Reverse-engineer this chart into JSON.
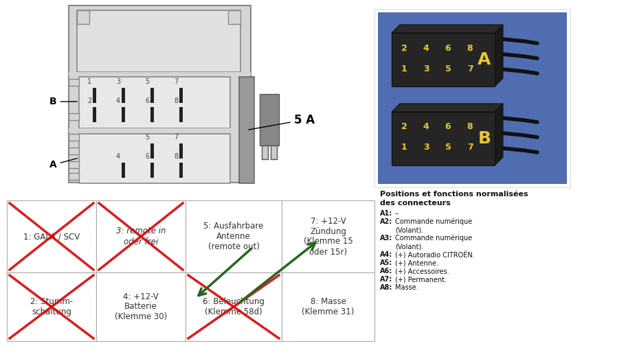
{
  "bg_color": "#ffffff",
  "table_cells": [
    {
      "row": 0,
      "col": 0,
      "text": "1: GALA / SCV",
      "crossed": true,
      "italic": false
    },
    {
      "row": 0,
      "col": 1,
      "text": "3: remote in\noder frei",
      "crossed": true,
      "italic": true
    },
    {
      "row": 0,
      "col": 2,
      "text": "5: Ausfahrbare\nAntenne\n(remote out)",
      "crossed": false,
      "italic": false
    },
    {
      "row": 0,
      "col": 3,
      "text": "7: +12-V\nZündung\n(Klemme 15\noder 15r)",
      "crossed": false,
      "italic": false
    },
    {
      "row": 1,
      "col": 0,
      "text": "2: Stumm-\nschaltung",
      "crossed": true,
      "italic": false
    },
    {
      "row": 1,
      "col": 1,
      "text": "4: +12-V\nBatterie\n(Klemme 30)",
      "crossed": false,
      "italic": false
    },
    {
      "row": 1,
      "col": 2,
      "text": "6: Beleuchtung\n(Klemme 58d)",
      "crossed": true,
      "italic": false
    },
    {
      "row": 1,
      "col": 3,
      "text": "8: Masse\n(Klemme 31)",
      "crossed": false,
      "italic": false
    }
  ],
  "photo_bg": "#5577bb",
  "connector_A_top_row": [
    "2",
    "4",
    "6",
    "8"
  ],
  "connector_A_bot_row": [
    "1",
    "3",
    "5",
    "7"
  ],
  "connector_B_top_row": [
    "2",
    "4",
    "6",
    "8"
  ],
  "connector_B_bot_row": [
    "1",
    "3",
    "5",
    "7"
  ],
  "pin_label_color": "#e8c830",
  "right_text_title1": "Positions et fonctions normalisées",
  "right_text_title2": "des connecteurs",
  "right_text_items": [
    [
      "A1:",
      "–"
    ],
    [
      "A2:",
      "Commande numérique"
    ],
    [
      "",
      "(Volant)."
    ],
    [
      "A3:",
      "Commande numérique"
    ],
    [
      "",
      "(Volant)."
    ],
    [
      "A4:",
      "(+) Autoradio CITROËN."
    ],
    [
      "A5:",
      "(+) Antenne."
    ],
    [
      "A6:",
      "(+) Accessoires."
    ],
    [
      "A7:",
      "(+) Permanent."
    ],
    [
      "A8:",
      "Masse."
    ]
  ]
}
